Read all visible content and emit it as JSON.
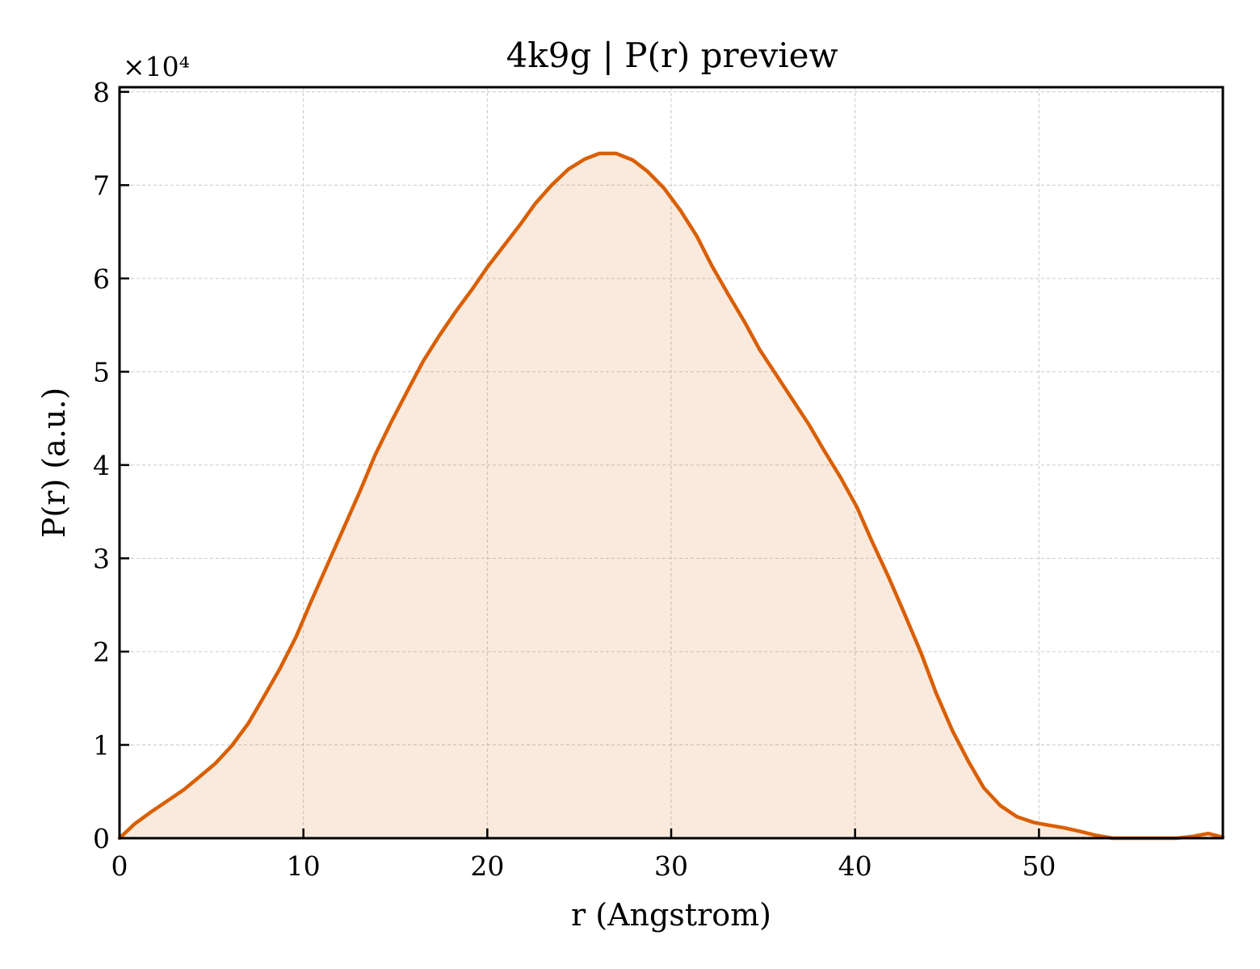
{
  "chart_data": {
    "type": "area",
    "title": "4k9g | P(r) preview",
    "xlabel": "r (Angstrom)",
    "ylabel": "P(r) (a.u.)",
    "y_multiplier_label": "×10⁴",
    "y_scale_factor": 10000,
    "xlim": [
      0,
      60
    ],
    "ylim": [
      0,
      80500
    ],
    "x_ticks": [
      0,
      10,
      20,
      30,
      40,
      50
    ],
    "y_ticks": [
      0,
      10000,
      20000,
      30000,
      40000,
      50000,
      60000,
      70000,
      80000
    ],
    "x_tick_labels": [
      "0",
      "10",
      "20",
      "30",
      "40",
      "50"
    ],
    "y_tick_labels": [
      "0",
      "1",
      "2",
      "3",
      "4",
      "5",
      "6",
      "7",
      "8"
    ],
    "grid": true,
    "line_color": "#d95f02",
    "fill_color": "#d95f02",
    "fill_opacity": 0.13,
    "x": [
      0,
      0.8,
      1.7,
      2.6,
      3.5,
      4.3,
      5.2,
      6.1,
      7.0,
      7.8,
      8.7,
      9.6,
      10.4,
      11.3,
      12.2,
      13.1,
      13.9,
      14.8,
      15.7,
      16.5,
      17.4,
      18.3,
      19.2,
      20.0,
      20.9,
      21.8,
      22.6,
      23.5,
      24.4,
      25.3,
      26.1,
      27.0,
      27.9,
      28.7,
      29.6,
      30.5,
      31.4,
      32.2,
      33.1,
      34.0,
      34.8,
      35.7,
      36.6,
      37.5,
      38.3,
      39.2,
      40.1,
      40.9,
      41.8,
      42.7,
      43.6,
      44.4,
      45.3,
      46.2,
      47.0,
      47.9,
      48.8,
      49.7,
      50.5,
      51.4,
      52.3,
      53.1,
      54.0,
      54.9,
      55.8,
      56.6,
      57.5,
      58.4,
      59.2,
      60.0
    ],
    "y": [
      0,
      1500,
      2800,
      4000,
      5200,
      6500,
      8000,
      9900,
      12300,
      15000,
      18100,
      21600,
      25300,
      29300,
      33300,
      37300,
      41100,
      44700,
      48100,
      51100,
      53900,
      56500,
      58900,
      61200,
      63500,
      65800,
      68000,
      70000,
      71700,
      72800,
      73400,
      73400,
      72700,
      71500,
      69700,
      67300,
      64500,
      61400,
      58300,
      55300,
      52400,
      49700,
      47000,
      44300,
      41600,
      38700,
      35500,
      31900,
      28100,
      24000,
      19800,
      15600,
      11500,
      8100,
      5400,
      3500,
      2300,
      1700,
      1400,
      1100,
      700,
      300,
      0,
      0,
      0,
      0,
      0,
      200,
      500,
      100
    ]
  }
}
